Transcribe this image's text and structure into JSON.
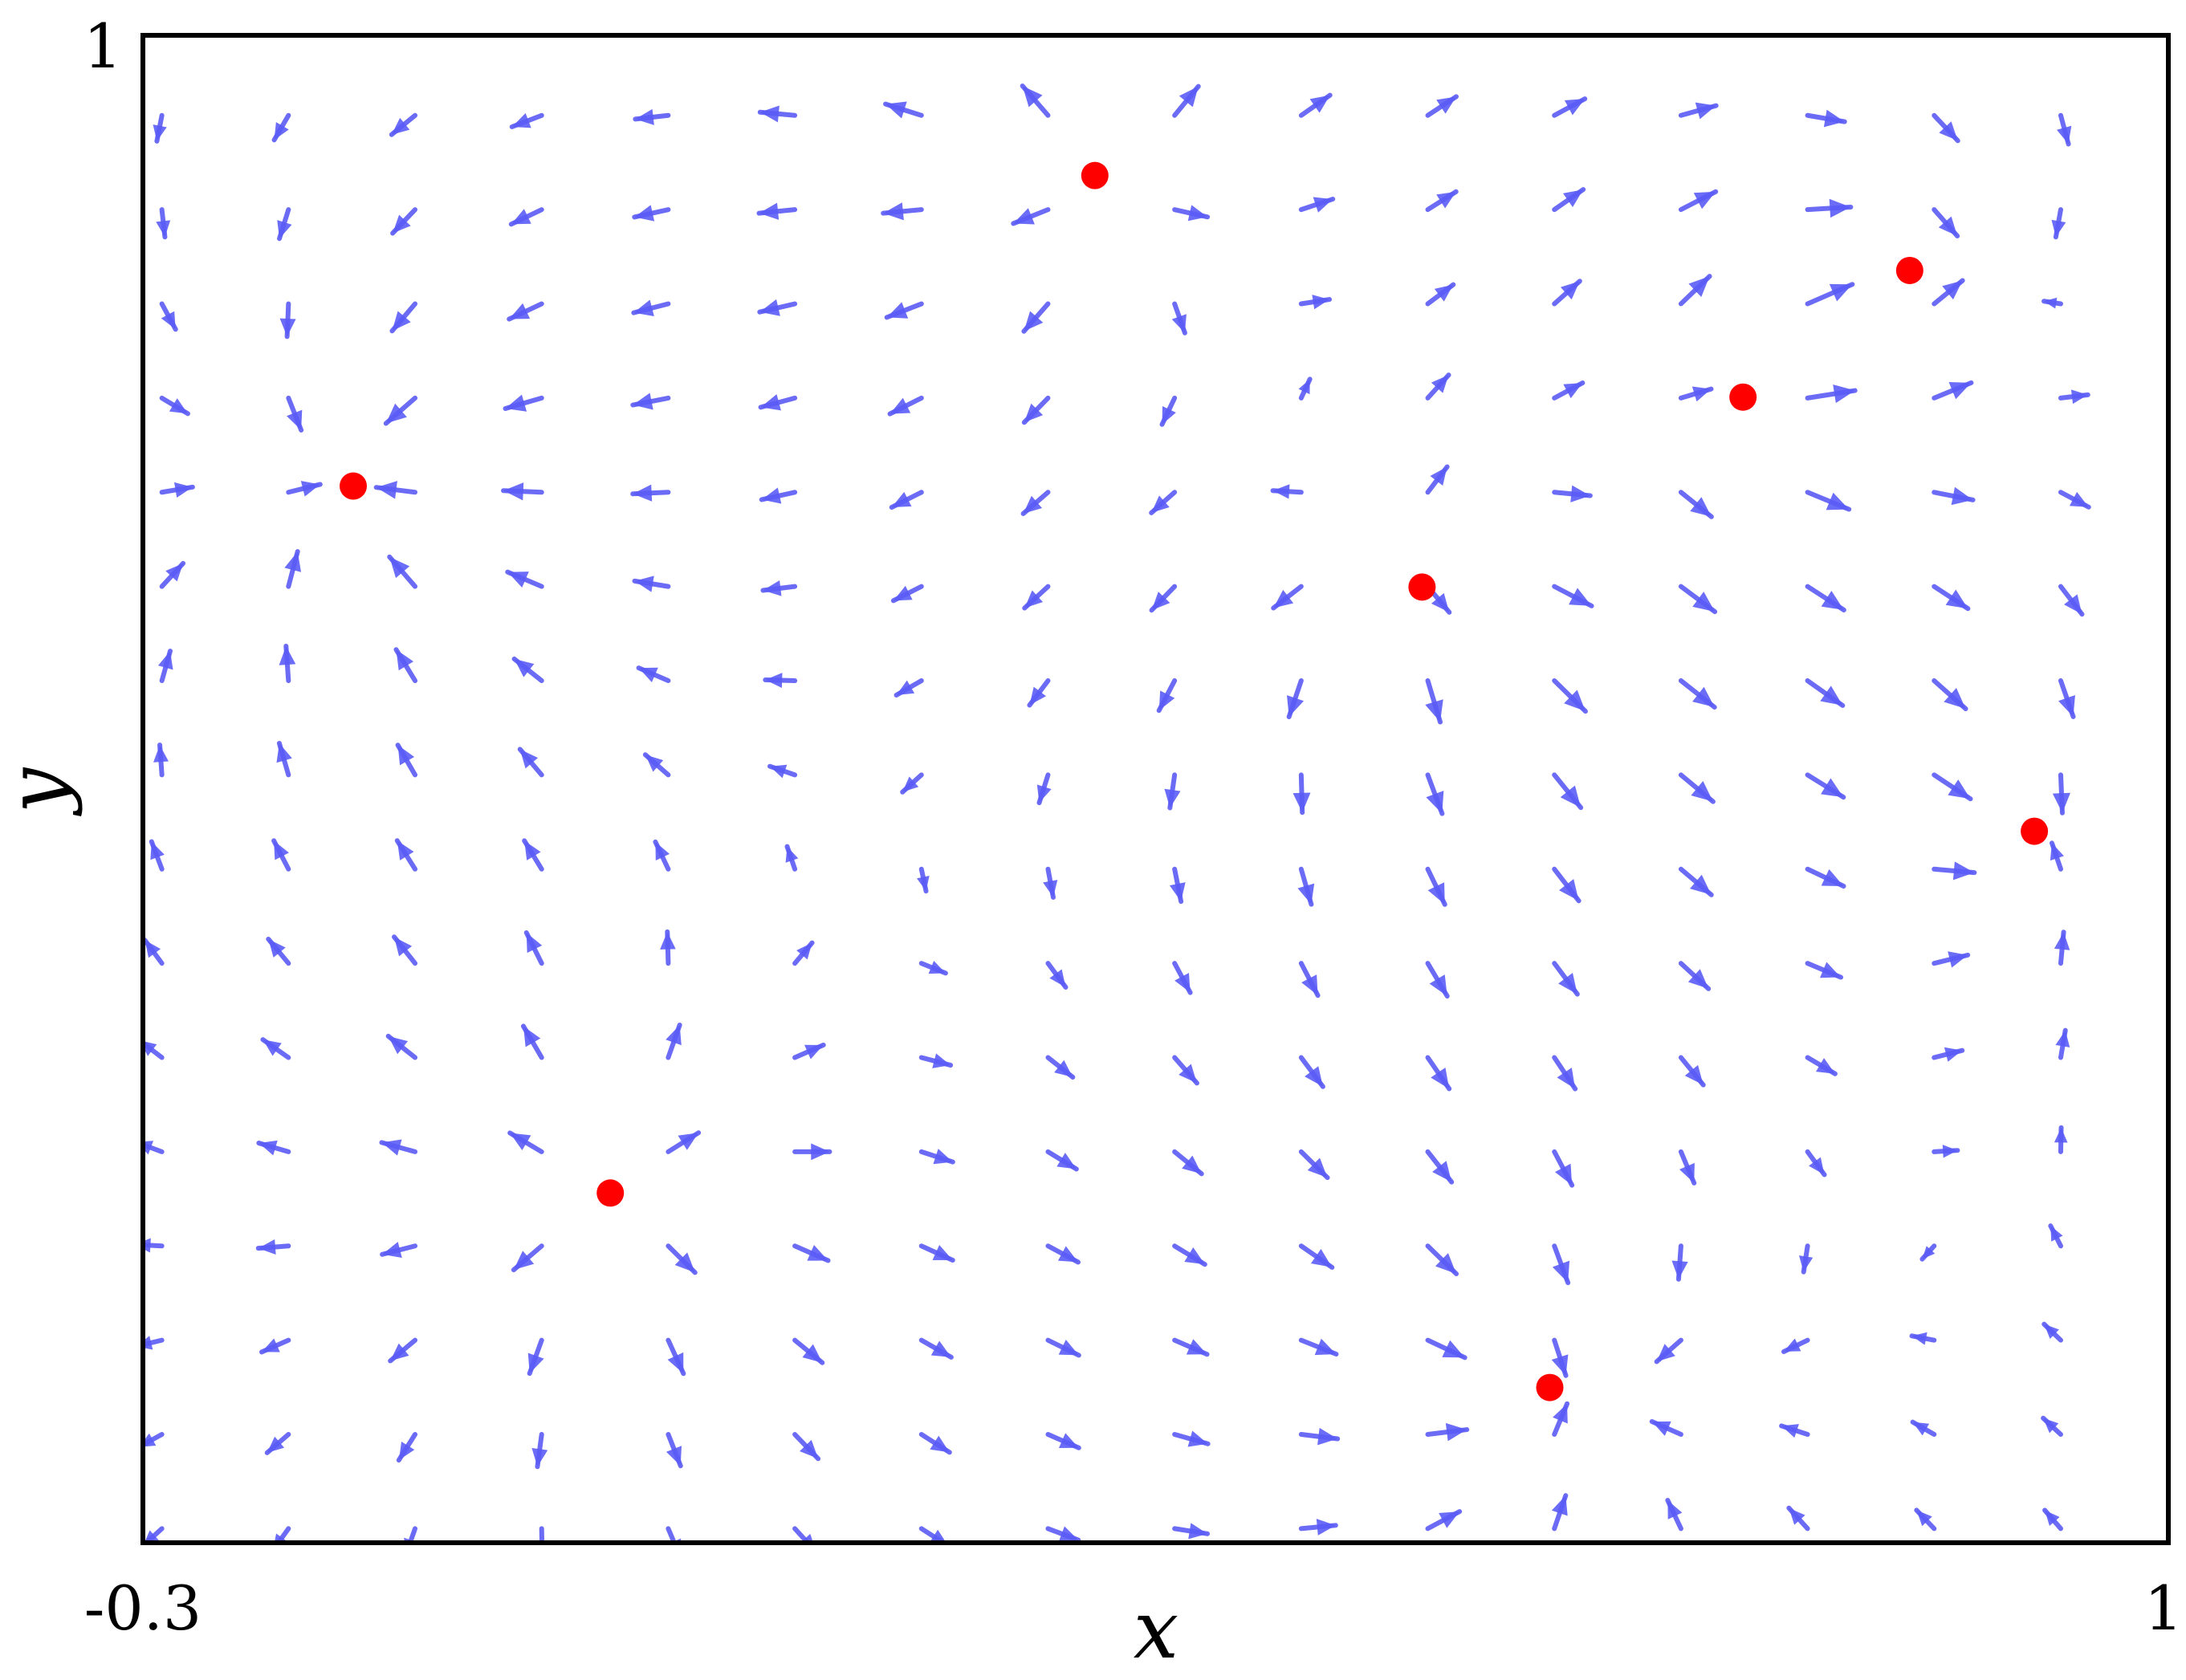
{
  "chart_data": {
    "type": "quiver",
    "title": "",
    "xlabel": "x",
    "ylabel": "y",
    "xlim": [
      -0.3,
      1
    ],
    "ylim": [
      0,
      1
    ],
    "x_tick_labels": [
      "-0.3",
      "1"
    ],
    "y_tick_labels": [
      "1"
    ],
    "grid": false,
    "legend": "none",
    "colors": {
      "arrow": "#5b5cf6",
      "point": "#ff0000",
      "frame": "#000000"
    },
    "points": [
      {
        "x": 0.311,
        "y": 0.907
      },
      {
        "x": 0.834,
        "y": 0.844
      },
      {
        "x": 0.727,
        "y": 0.76
      },
      {
        "x": -0.165,
        "y": 0.701
      },
      {
        "x": 0.521,
        "y": 0.634
      },
      {
        "x": 0.914,
        "y": 0.472
      },
      {
        "x": -0.0,
        "y": 0.232
      },
      {
        "x": 0.603,
        "y": 0.103
      }
    ]
  }
}
